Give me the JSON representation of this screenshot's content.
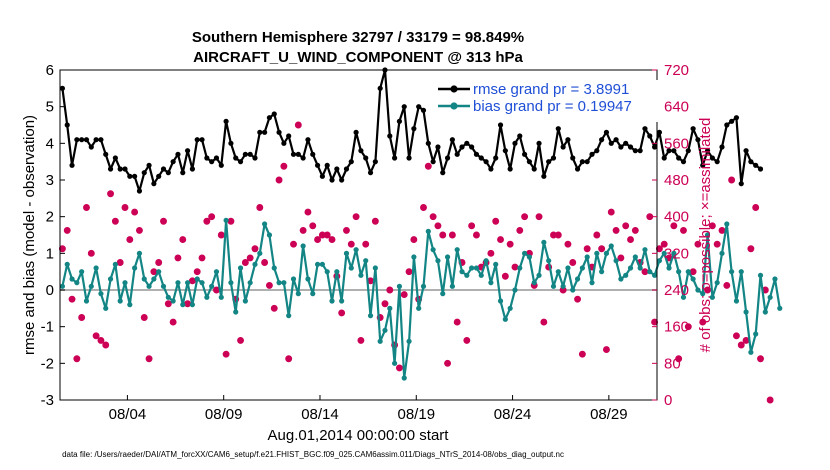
{
  "chart_data": {
    "type": "line",
    "title": "Southern Hemisphere 32797 / 33179 = 98.849%",
    "subtitle": "AIRCRAFT_U_WIND_COMPONENT @ 313 hPa",
    "xlabel": "Aug.01,2014 00:00:00 start",
    "ylabel": "rmse and bias (model - observation)",
    "y2label": "# of obs: o=possible; ×=assimilated",
    "footer": "data file: /Users/raeder/DAI/ATM_forcXX/CAM6_setup/f.e21.FHIST_BGC.f09_025.CAM6assim.011/Diags_NTrS_2014-08/obs_diag_output.nc",
    "x_ticks": [
      "08/04",
      "08/09",
      "08/14",
      "08/19",
      "08/24",
      "08/29"
    ],
    "x_tick_days": [
      3.5,
      8.5,
      13.5,
      18.5,
      23.5,
      28.5
    ],
    "xlim": [
      0,
      31
    ],
    "ylim": [
      -3,
      6
    ],
    "y_ticks": [
      "-3",
      "-2",
      "-1",
      "0",
      "1",
      "2",
      "3",
      "4",
      "5",
      "6"
    ],
    "y2lim": [
      0,
      720
    ],
    "y2_ticks": [
      "0",
      "80",
      "160",
      "240",
      "320",
      "400",
      "480",
      "560",
      "640",
      "720"
    ],
    "grid": false,
    "legend_position": "top-right",
    "colors": {
      "rmse": "#000000",
      "bias": "#138585",
      "obs": "#cc0055",
      "legend_text": "#1f4fd6",
      "zero_line": "#b0b0b0"
    },
    "series": [
      {
        "name": "rmse grand pr = 3.8991",
        "x_step_days": 0.25,
        "values": [
          5.5,
          4.5,
          3.4,
          4.1,
          4.1,
          4.1,
          3.9,
          4.1,
          4.1,
          3.7,
          3.3,
          3.6,
          3.3,
          3.3,
          3.1,
          3.1,
          2.7,
          3.2,
          3.4,
          2.9,
          3.1,
          3.3,
          3.2,
          3.5,
          3.7,
          3.2,
          3.8,
          3.3,
          4.1,
          4.1,
          3.6,
          3.5,
          3.6,
          3.4,
          4.6,
          4.0,
          3.6,
          3.5,
          3.7,
          3.7,
          3.6,
          4.3,
          4.3,
          4.7,
          4.8,
          4.3,
          4.0,
          4.2,
          3.7,
          3.7,
          3.6,
          4.1,
          3.7,
          3.4,
          3.1,
          3.4,
          3.0,
          3.3,
          3.0,
          3.3,
          3.5,
          4.3,
          3.8,
          3.6,
          3.2,
          3.5,
          5.5,
          6.0,
          4.2,
          3.6,
          4.6,
          5.0,
          3.6,
          4.4,
          5.0,
          4.9,
          4.0,
          3.5,
          3.9,
          3.2,
          3.6,
          4.1,
          3.7,
          3.9,
          4.0,
          3.9,
          3.7,
          3.6,
          3.5,
          3.3,
          3.6,
          4.5,
          3.8,
          3.3,
          4.0,
          4.2,
          3.7,
          3.5,
          3.3,
          4.0,
          3.1,
          3.5,
          3.6,
          4.4,
          3.9,
          4.1,
          3.6,
          3.3,
          3.5,
          3.5,
          3.7,
          3.8,
          4.1,
          4.3,
          4.0,
          4.1,
          3.9,
          4.0,
          3.9,
          3.8,
          3.8,
          4.4,
          4.2,
          3.9,
          4.3,
          3.6,
          3.8,
          3.8,
          3.6,
          3.5,
          3.8,
          4.4,
          4.1,
          3.4,
          3.8,
          3.6,
          3.5,
          3.9,
          4.5,
          4.6,
          4.7,
          2.9,
          3.8,
          3.5,
          3.4,
          3.3
        ]
      },
      {
        "name": "bias grand pr = 0.19947",
        "x_step_days": 0.25,
        "values": [
          0.1,
          0.7,
          0.3,
          0.2,
          0.5,
          -0.3,
          0.1,
          0.6,
          -0.1,
          -0.5,
          0.3,
          0.7,
          -0.3,
          0.2,
          -0.4,
          0.6,
          1.0,
          0.3,
          0.1,
          0.3,
          0.5,
          0.1,
          -0.2,
          -0.3,
          0.2,
          -0.4,
          0.2,
          -0.4,
          0.3,
          0.2,
          -0.2,
          0.1,
          0.5,
          -0.2,
          1.9,
          0.2,
          -0.6,
          0.6,
          -0.3,
          0.2,
          0.7,
          1.0,
          1.8,
          1.5,
          0.6,
          0.2,
          0.2,
          -0.7,
          0.3,
          -0.1,
          1.2,
          0.3,
          -0.1,
          0.7,
          0.7,
          0.5,
          -0.3,
          0.5,
          -0.3,
          1.0,
          0.6,
          1.1,
          0.4,
          0.8,
          -0.7,
          0.6,
          -1.4,
          -1.1,
          -0.5,
          -2.0,
          0.1,
          -2.4,
          -1.4,
          0.9,
          -0.5,
          0.1,
          1.6,
          1.1,
          0.8,
          -0.1,
          0.9,
          0.1,
          1.1,
          0.5,
          0.4,
          0.6,
          0.6,
          0.4,
          0.8,
          0.2,
          0.7,
          -0.3,
          -0.8,
          -0.5,
          0.0,
          0.6,
          1.0,
          0.9,
          0.2,
          0.4,
          1.3,
          0.8,
          0.1,
          0.5,
          0.1,
          0.6,
          0.0,
          0.3,
          0.6,
          0.9,
          0.2,
          1.0,
          0.5,
          1.0,
          1.2,
          0.8,
          0.3,
          0.4,
          0.6,
          0.9,
          0.6,
          1.1,
          0.5,
          0.4,
          0.8,
          1.0,
          0.6,
          1.0,
          0.5,
          -0.2,
          0.5,
          0.3,
          0.0,
          -0.1,
          1.5,
          -0.2,
          0.2,
          1.0,
          1.8,
          0.5,
          -0.3,
          0.5,
          -0.6,
          -1.7,
          -1.2,
          0.4,
          -0.6,
          -0.2,
          0.3,
          -0.5
        ]
      },
      {
        "name": "obs possible",
        "axis": "right",
        "x_step_days": 0.25,
        "values": [
          330,
          370,
          220,
          90,
          180,
          420,
          320,
          140,
          130,
          120,
          450,
          390,
          300,
          420,
          350,
          410,
          370,
          180,
          90,
          280,
          300,
          390,
          210,
          170,
          310,
          350,
          210,
          260,
          280,
          310,
          390,
          400,
          240,
          360,
          100,
          390,
          220,
          130,
          300,
          310,
          330,
          420,
          300,
          250,
          200,
          480,
          510,
          90,
          340,
          600,
          370,
          410,
          380,
          350,
          360,
          360,
          350,
          270,
          190,
          370,
          340,
          400,
          130,
          340,
          260,
          390,
          180,
          210,
          240,
          120,
          70,
          230,
          280,
          350,
          220,
          420,
          510,
          400,
          380,
          360,
          80,
          360,
          170,
          300,
          130,
          380,
          360,
          290,
          300,
          320,
          390,
          350,
          270,
          340,
          290,
          370,
          400,
          320,
          250,
          400,
          170,
          290,
          360,
          360,
          240,
          340,
          300,
          220,
          100,
          330,
          290,
          360,
          330,
          110,
          410,
          370,
          310,
          380,
          350,
          370,
          300,
          280,
          400,
          170,
          330,
          340,
          310,
          380,
          90,
          370,
          160,
          280,
          340,
          170,
          240,
          380,
          340,
          370,
          250,
          480,
          140,
          120,
          130,
          330,
          420,
          90,
          240,
          0
        ]
      },
      {
        "name": "obs assimilated",
        "axis": "right",
        "x_step_days": 0.25,
        "values": [
          330,
          370,
          220,
          90,
          180,
          420,
          320,
          140,
          130,
          120,
          450,
          390,
          300,
          420,
          350,
          410,
          370,
          180,
          90,
          280,
          300,
          390,
          210,
          170,
          310,
          350,
          210,
          260,
          280,
          310,
          390,
          400,
          240,
          360,
          100,
          390,
          220,
          130,
          300,
          310,
          330,
          420,
          300,
          250,
          200,
          480,
          510,
          90,
          340,
          600,
          370,
          410,
          380,
          350,
          360,
          360,
          350,
          270,
          190,
          370,
          340,
          400,
          130,
          340,
          260,
          390,
          180,
          210,
          240,
          120,
          70,
          230,
          280,
          350,
          220,
          420,
          510,
          400,
          380,
          360,
          80,
          360,
          170,
          300,
          130,
          380,
          360,
          290,
          300,
          320,
          390,
          350,
          270,
          340,
          290,
          370,
          400,
          320,
          250,
          400,
          170,
          290,
          360,
          360,
          240,
          340,
          300,
          220,
          100,
          330,
          290,
          360,
          330,
          110,
          410,
          370,
          310,
          380,
          350,
          370,
          300,
          280,
          400,
          170,
          330,
          340,
          310,
          380,
          90,
          370,
          160,
          280,
          340,
          170,
          240,
          380,
          340,
          370,
          250,
          480,
          140,
          120,
          130,
          330,
          420,
          90,
          240,
          0
        ]
      }
    ]
  }
}
